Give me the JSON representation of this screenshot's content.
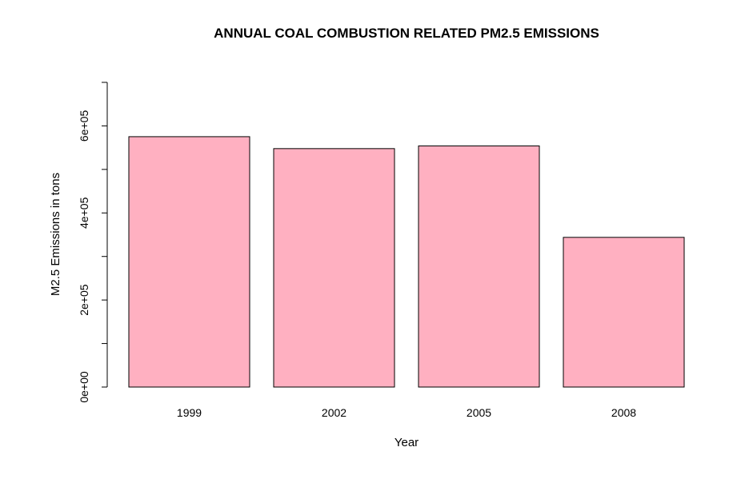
{
  "chart_data": {
    "type": "bar",
    "title": "ANNUAL COAL COMBUSTION RELATED PM2.5 EMISSIONS",
    "xlabel": "Year",
    "ylabel": "M2.5 Emissions in tons",
    "categories": [
      "1999",
      "2002",
      "2005",
      "2008"
    ],
    "values": [
      575200,
      547800,
      554000,
      343900
    ],
    "ylim": [
      0,
      700000
    ],
    "y_ticks_major": [
      0,
      200000,
      400000,
      600000
    ],
    "y_tick_labels": [
      "0e+00",
      "2e+05",
      "4e+05",
      "6e+05"
    ],
    "y_ticks_minor": [
      100000,
      300000,
      500000,
      700000
    ],
    "bar_color": "#FFB0C1",
    "grid": false,
    "legend": "none"
  }
}
